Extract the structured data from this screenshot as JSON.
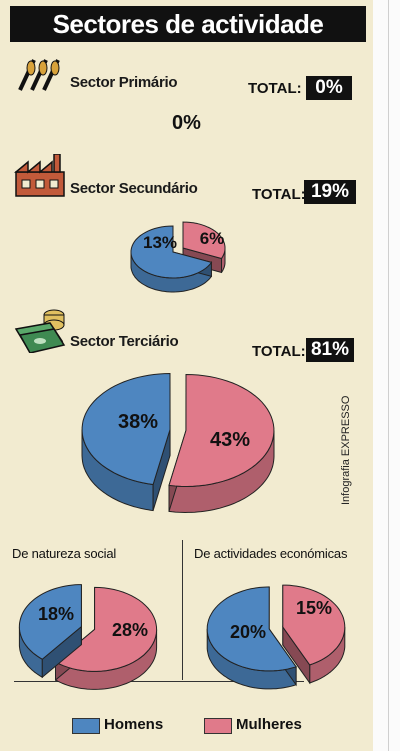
{
  "title": "Sectores de actividade",
  "sectors": [
    {
      "name": "Sector Primário",
      "total_label": "TOTAL:",
      "total": "0%",
      "value_text": "0%",
      "icon": "wheat-icon"
    },
    {
      "name": "Sector Secundário",
      "total_label": "TOTAL:",
      "total": "19%",
      "icon": "factory-icon"
    },
    {
      "name": "Sector Terciário",
      "total_label": "TOTAL:",
      "total": "81%",
      "icon": "money-icon"
    }
  ],
  "subgroups": [
    {
      "label": "De natureza social"
    },
    {
      "label": "De actividades económicas"
    }
  ],
  "credit": "Infografia EXPRESSO",
  "legend": [
    {
      "label": "Homens",
      "color": "#4e86c0"
    },
    {
      "label": "Mulheres",
      "color": "#e07a8a"
    }
  ],
  "colors": {
    "homens": "#4e86c0",
    "mulheres": "#e07a8a"
  },
  "chart_data": [
    {
      "type": "pie",
      "title": "Sector Secundário",
      "categories": [
        "Homens",
        "Mulheres"
      ],
      "values": [
        13,
        6
      ],
      "labels": [
        "13%",
        "6%"
      ]
    },
    {
      "type": "pie",
      "title": "Sector Terciário",
      "categories": [
        "Homens",
        "Mulheres"
      ],
      "values": [
        38,
        43
      ],
      "labels": [
        "38%",
        "43%"
      ]
    },
    {
      "type": "pie",
      "title": "De natureza social",
      "categories": [
        "Homens",
        "Mulheres"
      ],
      "values": [
        18,
        28
      ],
      "labels": [
        "18%",
        "28%"
      ]
    },
    {
      "type": "pie",
      "title": "De actividades económicas",
      "categories": [
        "Homens",
        "Mulheres"
      ],
      "values": [
        20,
        15
      ],
      "labels": [
        "20%",
        "15%"
      ]
    }
  ]
}
